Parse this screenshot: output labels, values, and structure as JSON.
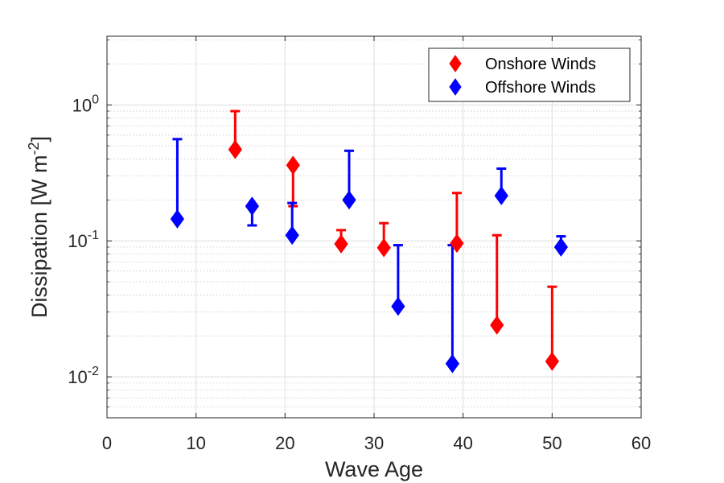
{
  "chart_data": {
    "type": "scatter",
    "xlabel": "Wave Age",
    "ylabel": "Dissipation [W m",
    "ylabel_exponent": "-2",
    "ylabel_close": "]",
    "xlim": [
      0,
      60
    ],
    "ylim": [
      0.005,
      3.2
    ],
    "y_scale": "log",
    "grid": true,
    "minor_grid": true,
    "legend_position": "top-right",
    "x_ticks": [
      "0",
      "10",
      "20",
      "30",
      "40",
      "50",
      "60"
    ],
    "y_ticks": [
      {
        "base": "10",
        "exp": "0",
        "value": 1
      },
      {
        "base": "10",
        "exp": "-1",
        "value": 0.1
      },
      {
        "base": "10",
        "exp": "-2",
        "value": 0.01
      }
    ],
    "series": [
      {
        "name": "Onshore Winds",
        "color": "#ff0000",
        "points": [
          {
            "x": 14.4,
            "y": 0.47,
            "err_hi": 0.9
          },
          {
            "x": 20.9,
            "y": 0.36,
            "err_lo": 0.18
          },
          {
            "x": 26.3,
            "y": 0.095,
            "err_hi": 0.12
          },
          {
            "x": 31.1,
            "y": 0.089,
            "err_hi": 0.135
          },
          {
            "x": 39.3,
            "y": 0.096,
            "err_hi": 0.225
          },
          {
            "x": 43.8,
            "y": 0.024,
            "err_hi": 0.11
          },
          {
            "x": 50.0,
            "y": 0.013,
            "err_hi": 0.046
          }
        ]
      },
      {
        "name": "Offshore Winds",
        "color": "#0000ff",
        "points": [
          {
            "x": 7.9,
            "y": 0.145,
            "err_hi": 0.56
          },
          {
            "x": 16.3,
            "y": 0.18,
            "err_lo": 0.13
          },
          {
            "x": 20.8,
            "y": 0.11,
            "err_hi": 0.19
          },
          {
            "x": 27.2,
            "y": 0.2,
            "err_hi": 0.46
          },
          {
            "x": 32.7,
            "y": 0.033,
            "err_hi": 0.093
          },
          {
            "x": 38.8,
            "y": 0.0125,
            "err_hi": 0.093
          },
          {
            "x": 44.3,
            "y": 0.215,
            "err_hi": 0.34
          },
          {
            "x": 51.0,
            "y": 0.09,
            "err_hi": 0.108
          }
        ]
      }
    ]
  }
}
